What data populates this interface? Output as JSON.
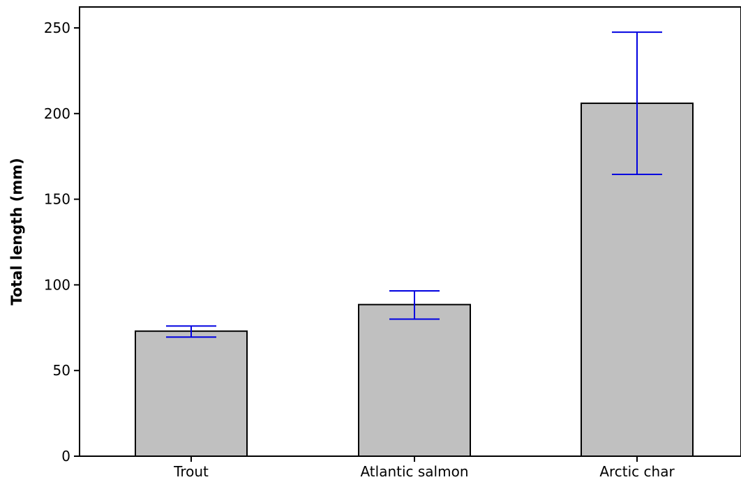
{
  "chart_data": {
    "type": "bar",
    "title": "",
    "xlabel": "",
    "ylabel": "Total length (mm)",
    "categories": [
      "Trout",
      "Atlantic salmon",
      "Arctic char"
    ],
    "values": [
      73,
      88.5,
      206
    ],
    "error_bars": [
      {
        "low": 69.5,
        "high": 76
      },
      {
        "low": 80,
        "high": 96.5
      },
      {
        "low": 164.5,
        "high": 247.5
      }
    ],
    "ylim": [
      0,
      250
    ],
    "yticks": [
      0,
      50,
      100,
      150,
      200,
      250
    ],
    "grid": false,
    "colors": {
      "bar_fill": "#c0c0c0",
      "bar_stroke": "#000000",
      "error_bar": "#0000e0"
    }
  }
}
